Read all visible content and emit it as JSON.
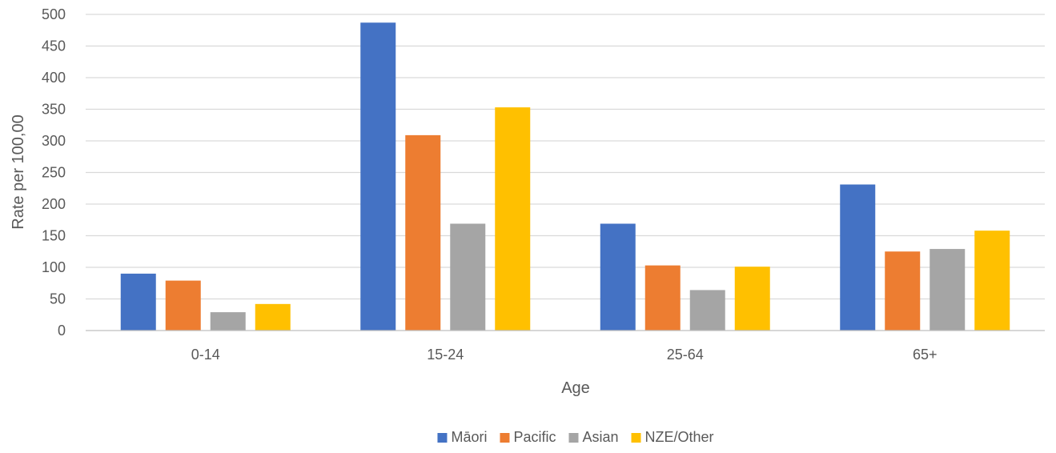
{
  "chart_data": {
    "type": "bar",
    "title": "",
    "xlabel": "Age",
    "ylabel": "Rate per 100,00",
    "categories": [
      "0-14",
      "15-24",
      "25-64",
      "65+"
    ],
    "series": [
      {
        "name": "Māori",
        "color": "#4472C4",
        "values": [
          90,
          487,
          169,
          231
        ]
      },
      {
        "name": "Pacific",
        "color": "#ED7D31",
        "values": [
          79,
          309,
          103,
          125
        ]
      },
      {
        "name": "Asian",
        "color": "#A5A5A5",
        "values": [
          29,
          169,
          64,
          129
        ]
      },
      {
        "name": "NZE/Other",
        "color": "#FFC000",
        "values": [
          42,
          353,
          101,
          158
        ]
      }
    ],
    "ylim": [
      0,
      500
    ],
    "yticks": [
      0,
      50,
      100,
      150,
      200,
      250,
      300,
      350,
      400,
      450,
      500
    ],
    "grid": true,
    "legend": "bottom-center"
  }
}
